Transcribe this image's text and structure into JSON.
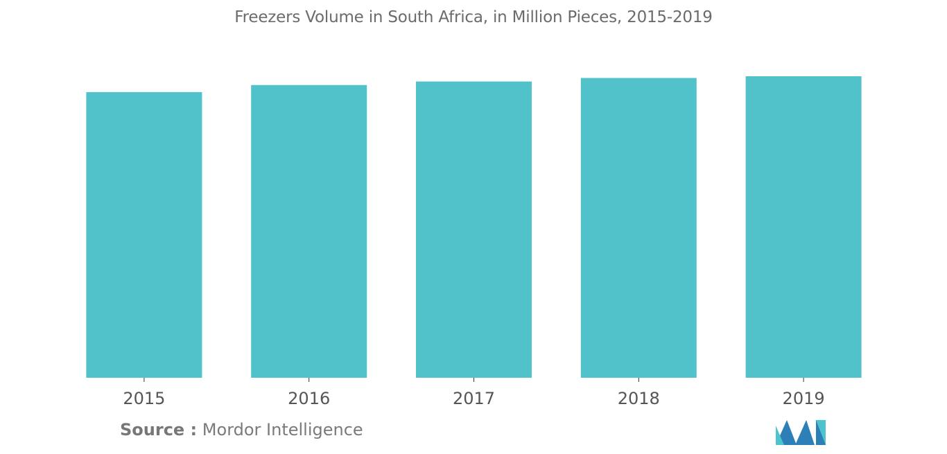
{
  "chart_data": {
    "type": "bar",
    "title": "Freezers Volume in South Africa, in Million Pieces, 2015-2019",
    "categories": [
      "2015",
      "2016",
      "2017",
      "2018",
      "2019"
    ],
    "values": [
      0.81,
      0.83,
      0.84,
      0.85,
      0.855
    ],
    "ylim": [
      0,
      0.855
    ],
    "bar_color": "#52c2ca",
    "grid": false
  },
  "source": {
    "label": "Source :",
    "text": "Mordor Intelligence"
  },
  "logo": {
    "icon": "mordor-intelligence-logo-icon",
    "colors": [
      "#2d7fb8",
      "#4cc3cd"
    ]
  }
}
